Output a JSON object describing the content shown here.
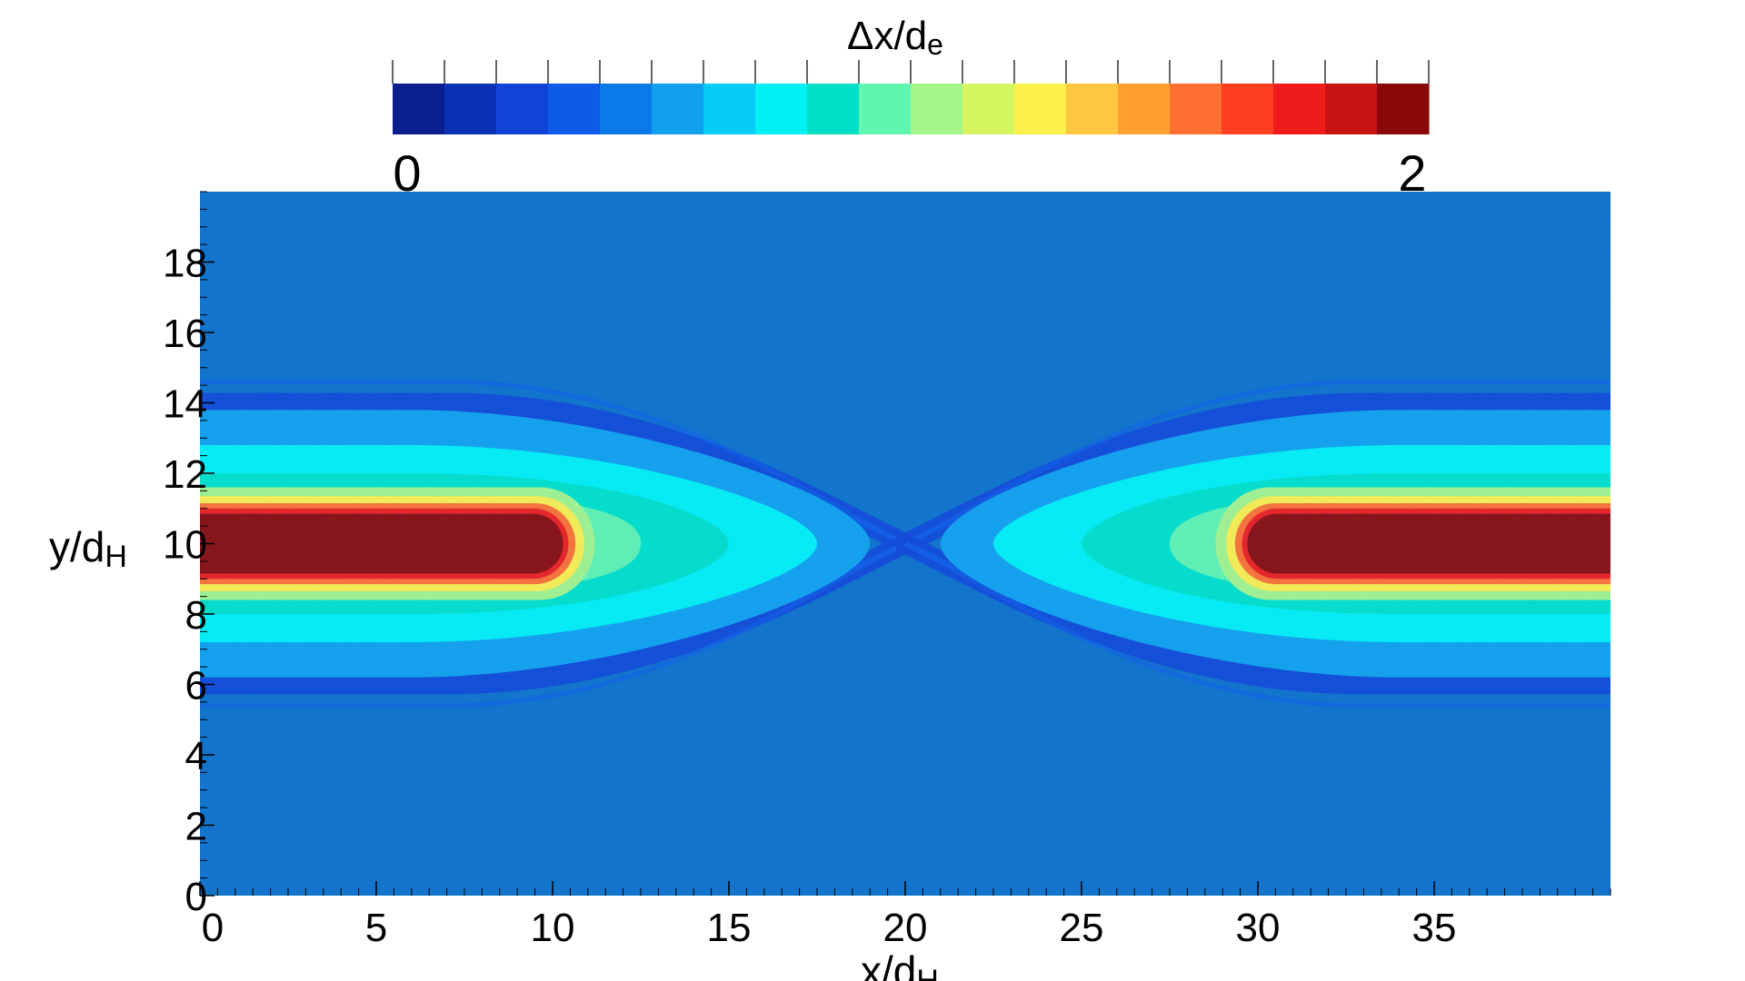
{
  "chart_data": {
    "type": "heatmap",
    "title": "",
    "colorbar": {
      "label_main": "Δx/d",
      "label_sub": "e",
      "min_label": "0",
      "max_label": "2",
      "range": [
        0,
        2
      ],
      "n_levels": 20,
      "placement": "top",
      "colors": [
        "#0a1f8f",
        "#0a30b4",
        "#0f44d6",
        "#0d5be6",
        "#0a7ae8",
        "#10a0ec",
        "#06cbf5",
        "#00f0f4",
        "#00e0c8",
        "#60f5b0",
        "#a4f58a",
        "#d4f560",
        "#fef04c",
        "#ffc840",
        "#ffa030",
        "#ff7030",
        "#ff4020",
        "#f01c1c",
        "#c81414",
        "#8a0a0a"
      ]
    },
    "xlabel_main": "x/d",
    "xlabel_sub": "H",
    "ylabel_main": "y/d",
    "ylabel_sub": "H",
    "xlim": [
      0,
      40
    ],
    "ylim": [
      0,
      20
    ],
    "x_ticks": [
      {
        "value": 0,
        "label": "0"
      },
      {
        "value": 5,
        "label": "5"
      },
      {
        "value": 10,
        "label": "10"
      },
      {
        "value": 15,
        "label": "15"
      },
      {
        "value": 20,
        "label": "20"
      },
      {
        "value": 25,
        "label": "25"
      },
      {
        "value": 30,
        "label": "30"
      },
      {
        "value": 35,
        "label": "35"
      }
    ],
    "y_ticks": [
      {
        "value": 0,
        "label": "0"
      },
      {
        "value": 2,
        "label": "2"
      },
      {
        "value": 4,
        "label": "4"
      },
      {
        "value": 6,
        "label": "6"
      },
      {
        "value": 8,
        "label": "8"
      },
      {
        "value": 10,
        "label": "10"
      },
      {
        "value": 12,
        "label": "12"
      },
      {
        "value": 14,
        "label": "14"
      },
      {
        "value": 16,
        "label": "16"
      },
      {
        "value": 18,
        "label": "18"
      }
    ],
    "x_minor_step": 0.5,
    "y_minor_step": 0.5,
    "field": {
      "background": 0.45,
      "current_sheets": [
        {
          "x_center": 5.5,
          "y_center": 10,
          "x_extent_to": 10.3
        },
        {
          "x_center": 34.5,
          "y_center": 10,
          "x_extent_from": 29.7
        }
      ],
      "sheet_peak": 2.0,
      "separatrix_min": 0.2,
      "x_point": {
        "x": 20,
        "y": 10
      },
      "separatrix_y": [
        6,
        14
      ]
    }
  }
}
